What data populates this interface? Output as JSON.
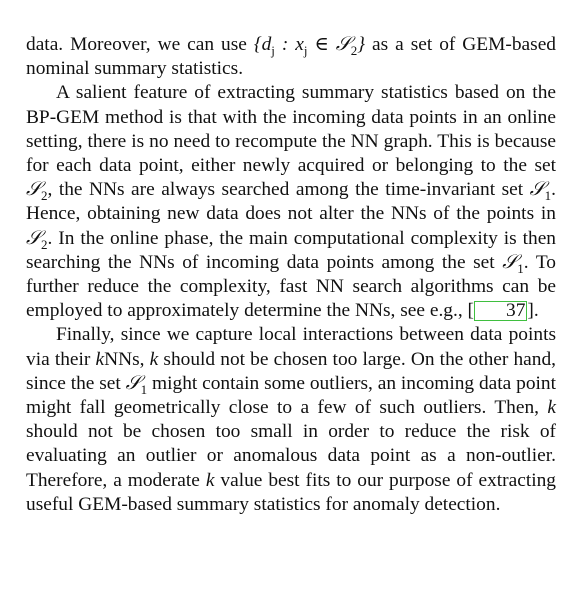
{
  "paragraphs": [
    {
      "segments": [
        {
          "text": "data. Moreover, we can use "
        },
        {
          "text": "{d",
          "math": true
        },
        {
          "text": "j",
          "sub": true
        },
        {
          "text": " : x",
          "math": true
        },
        {
          "text": "j",
          "sub": true
        },
        {
          "text": " ∈ 𝒮",
          "math": true
        },
        {
          "text": "2",
          "sub": true
        },
        {
          "text": "}",
          "math": true
        },
        {
          "text": " as a set of GEM-based nominal summary statistics."
        }
      ]
    },
    {
      "segments": [
        {
          "text": "A salient feature of extracting summary statistics based on the BP-GEM method is that with the incoming data points in an online setting, there is no need to recompute the NN graph. This is because for each data point, either newly acquired or belonging to the set "
        },
        {
          "text": "𝒮",
          "math": true
        },
        {
          "text": "2",
          "sub": true
        },
        {
          "text": ", the NNs are always searched among the time-invariant set "
        },
        {
          "text": "𝒮",
          "math": true
        },
        {
          "text": "1",
          "sub": true
        },
        {
          "text": ". Hence, obtaining new data does not alter the NNs of the points in "
        },
        {
          "text": "𝒮",
          "math": true
        },
        {
          "text": "2",
          "sub": true
        },
        {
          "text": ". In the online phase, the main computational complexity is then searching the NNs of incoming data points among the set "
        },
        {
          "text": "𝒮",
          "math": true
        },
        {
          "text": "1",
          "sub": true
        },
        {
          "text": ". To further reduce the complexity, fast NN search algorithms can be employed to approximately determine the NNs, see e.g., ["
        },
        {
          "text": "37",
          "cite": true
        },
        {
          "text": "]."
        }
      ]
    },
    {
      "segments": [
        {
          "text": "Finally, since we capture local interactions between data points via their "
        },
        {
          "text": "k",
          "math": true
        },
        {
          "text": "NNs, "
        },
        {
          "text": "k",
          "math": true
        },
        {
          "text": " should not be chosen too large. On the other hand, since the set "
        },
        {
          "text": "𝒮",
          "math": true
        },
        {
          "text": "1",
          "sub": true
        },
        {
          "text": " might contain some outliers, an incoming data point might fall geometrically close to a few of such outliers. Then, "
        },
        {
          "text": "k",
          "math": true
        },
        {
          "text": " should not be chosen too small in order to reduce the risk of evaluating an outlier or anomalous data point as a non-outlier. Therefore, a moderate "
        },
        {
          "text": "k",
          "math": true
        },
        {
          "text": " value best fits to our purpose of extracting useful GEM-based summary statistics for anomaly detection."
        }
      ]
    }
  ]
}
